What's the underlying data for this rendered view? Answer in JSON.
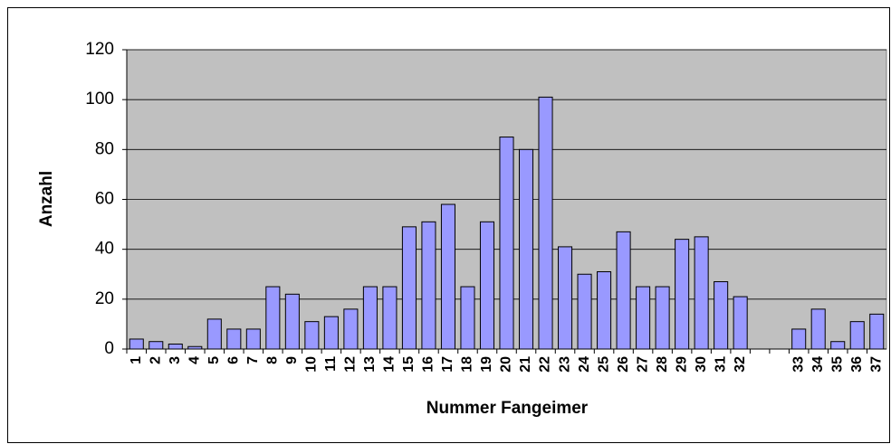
{
  "chart_data": {
    "type": "bar",
    "xlabel": "Nummer Fangeimer",
    "ylabel": "Anzahl",
    "categories": [
      "1",
      "2",
      "3",
      "4",
      "5",
      "6",
      "7",
      "8",
      "9",
      "10",
      "11",
      "12",
      "13",
      "14",
      "15",
      "16",
      "17",
      "18",
      "19",
      "20",
      "21",
      "22",
      "23",
      "24",
      "25",
      "26",
      "27",
      "28",
      "29",
      "30",
      "31",
      "32",
      null,
      null,
      "33",
      "34",
      "35",
      "36",
      "37"
    ],
    "values": [
      4,
      3,
      2,
      1,
      12,
      8,
      8,
      25,
      22,
      11,
      13,
      16,
      25,
      25,
      49,
      51,
      58,
      25,
      51,
      85,
      80,
      101,
      41,
      30,
      31,
      47,
      25,
      25,
      44,
      45,
      27,
      21,
      null,
      null,
      8,
      16,
      3,
      11,
      14
    ],
    "color": "#9999ff",
    "background": "#c0c0c0",
    "ylim": [
      0,
      120
    ],
    "yticks": [
      0,
      20,
      40,
      60,
      80,
      100,
      120
    ],
    "grid": true
  }
}
